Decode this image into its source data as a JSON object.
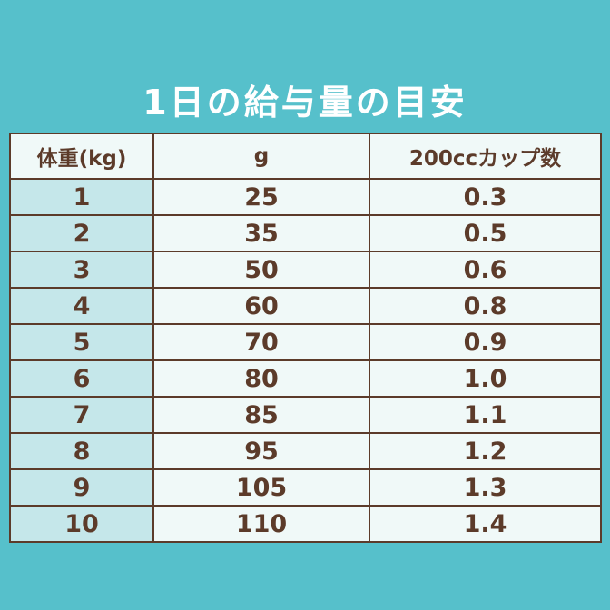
{
  "title": "1日の給与量の目安",
  "colors": {
    "background": "#56c0cb",
    "title_text": "#ffffff",
    "table_text": "#5c3b2a",
    "first_column_fill": "#c5e7ea",
    "cell_fill": "#f0f9f8"
  },
  "table": {
    "headers": [
      "体重(kg)",
      "g",
      "200ccカップ数"
    ]
  },
  "chart_data": {
    "type": "table",
    "title": "1日の給与量の目安",
    "columns": [
      "体重(kg)",
      "g",
      "200ccカップ数"
    ],
    "rows": [
      [
        "1",
        "25",
        "0.3"
      ],
      [
        "2",
        "35",
        "0.5"
      ],
      [
        "3",
        "50",
        "0.6"
      ],
      [
        "4",
        "60",
        "0.8"
      ],
      [
        "5",
        "70",
        "0.9"
      ],
      [
        "6",
        "80",
        "1.0"
      ],
      [
        "7",
        "85",
        "1.1"
      ],
      [
        "8",
        "95",
        "1.2"
      ],
      [
        "9",
        "105",
        "1.3"
      ],
      [
        "10",
        "110",
        "1.4"
      ]
    ]
  }
}
